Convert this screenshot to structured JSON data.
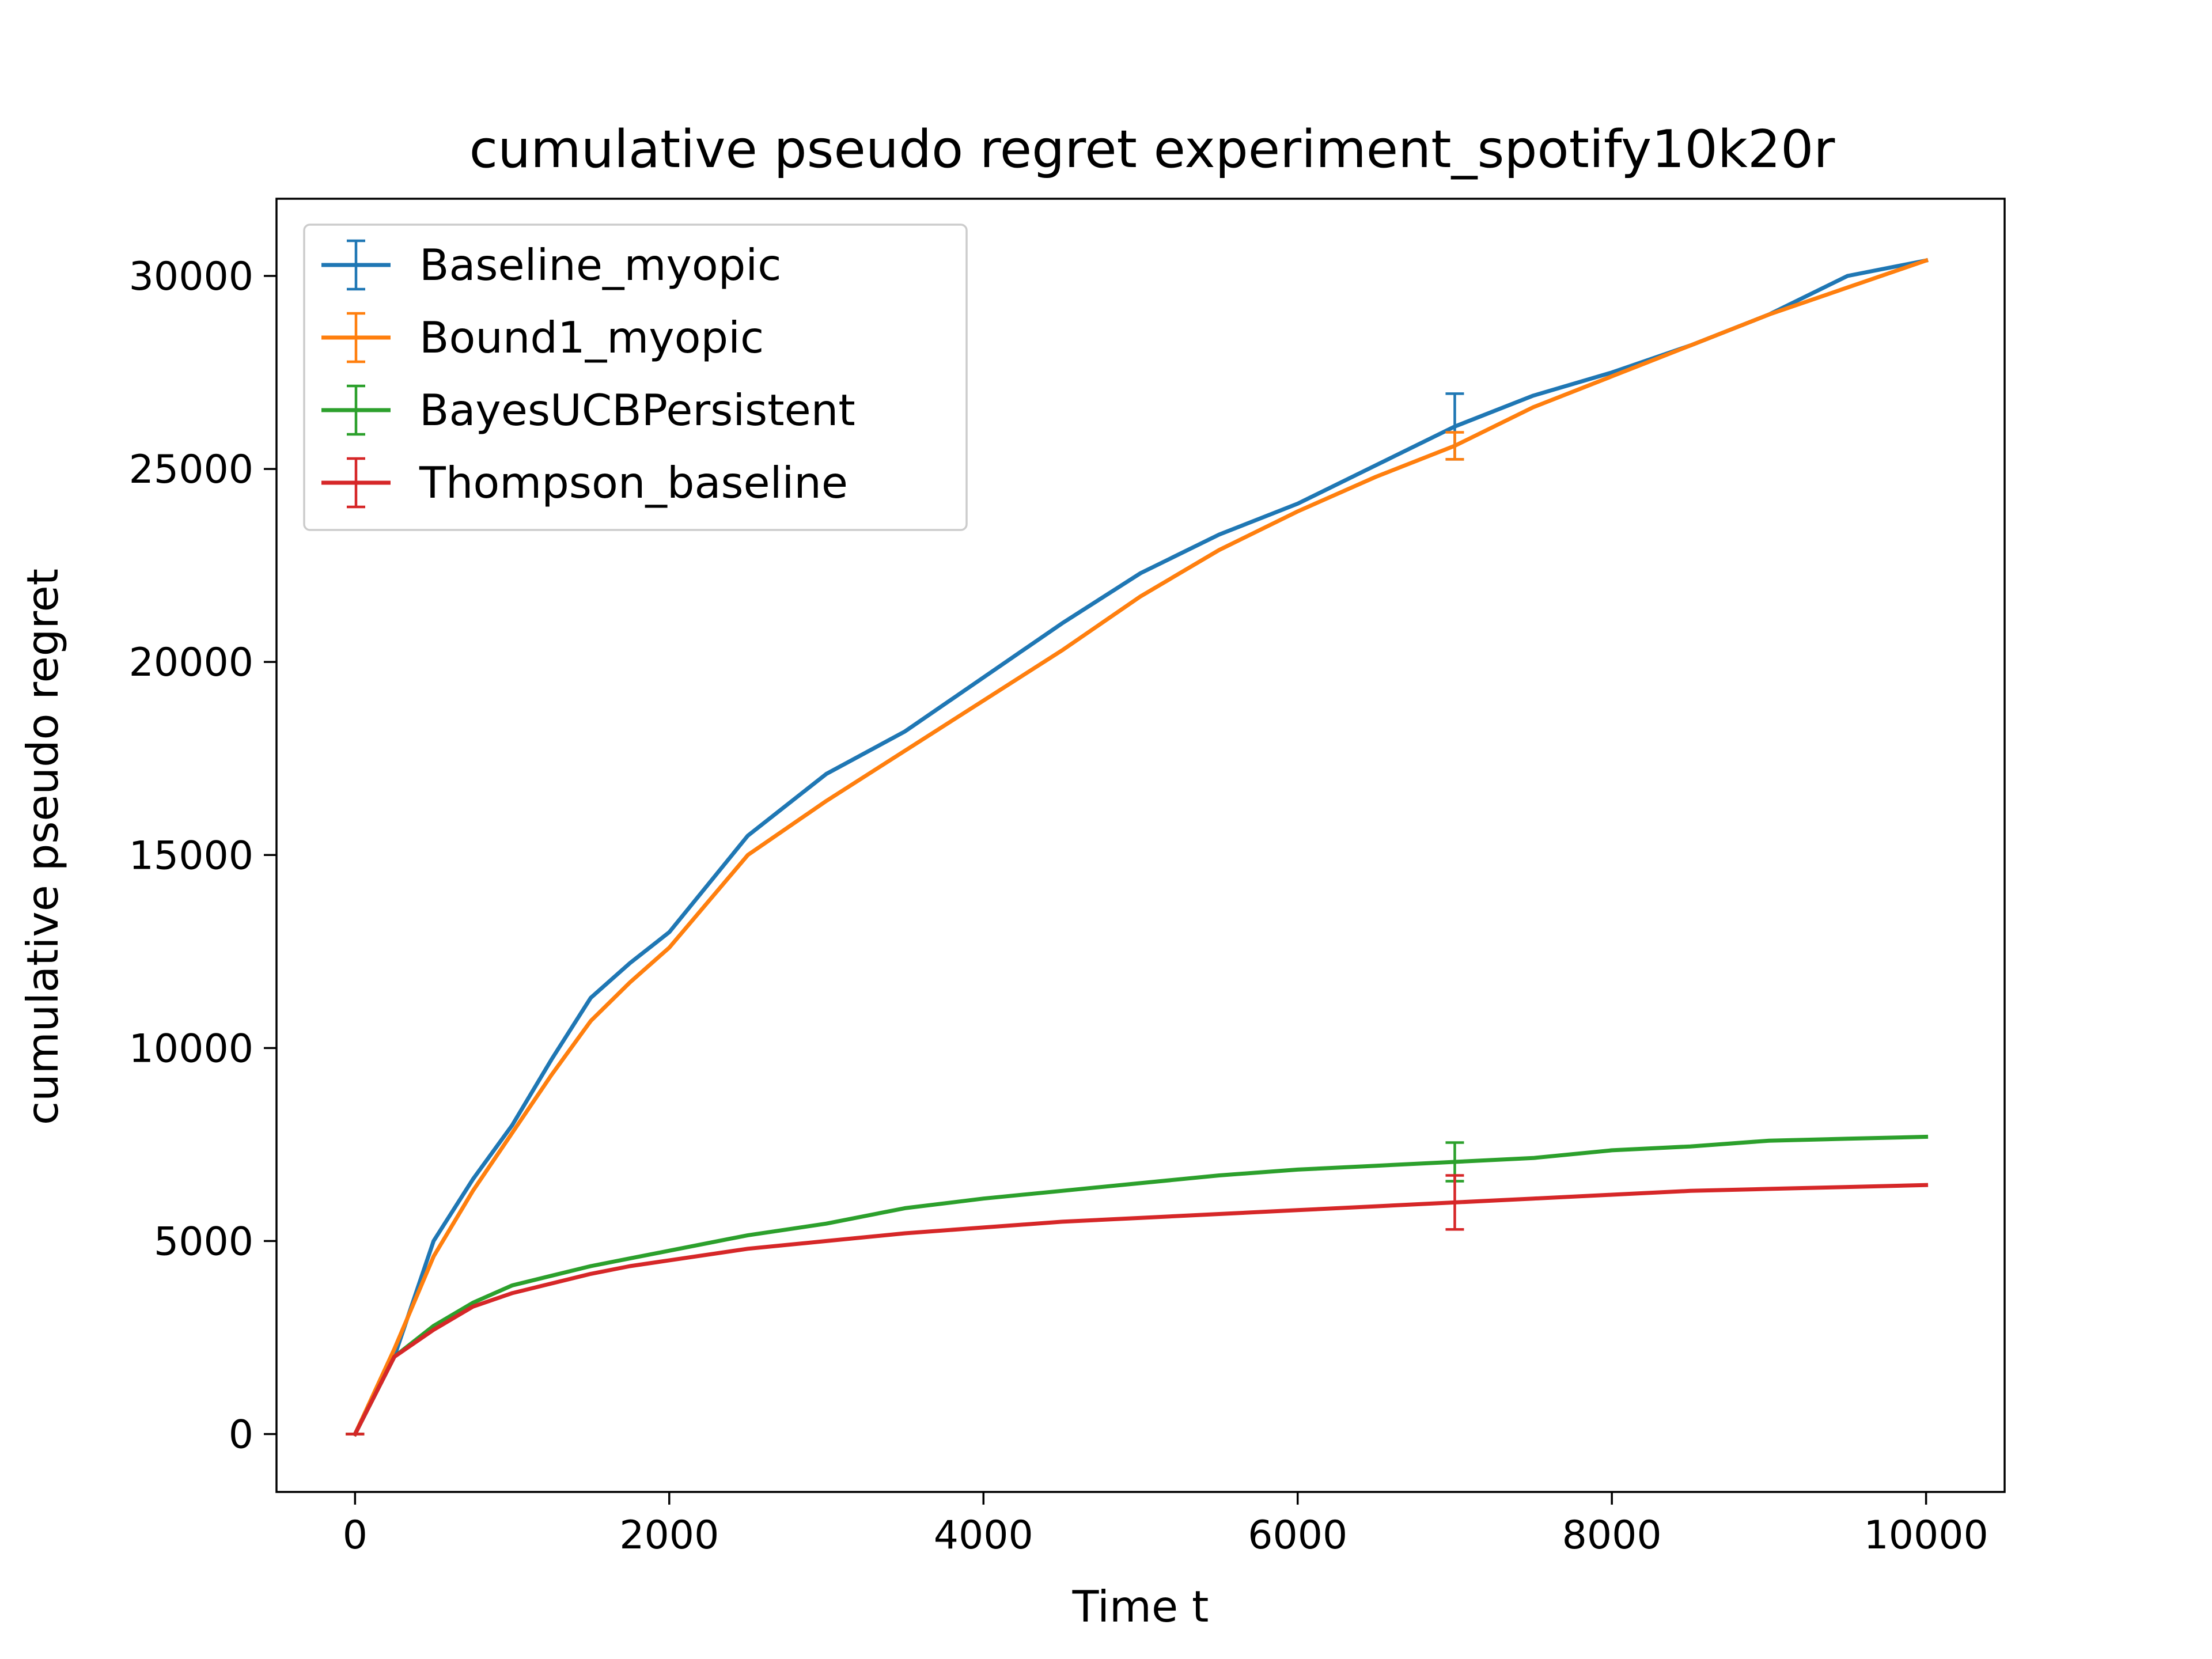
{
  "chart_data": {
    "type": "line",
    "title": "cumulative pseudo regret experiment_spotify10k20r",
    "xlabel": "Time t",
    "ylabel": "cumulative pseudo regret",
    "xlim": [
      -500,
      10500
    ],
    "ylim": [
      -1500,
      32000
    ],
    "xticks": [
      0,
      2000,
      4000,
      6000,
      8000,
      10000
    ],
    "xtick_labels": [
      "0",
      "2000",
      "4000",
      "6000",
      "8000",
      "10000"
    ],
    "yticks": [
      0,
      5000,
      10000,
      15000,
      20000,
      25000,
      30000
    ],
    "ytick_labels": [
      "0",
      "5000",
      "10000",
      "15000",
      "20000",
      "25000",
      "30000"
    ],
    "grid": false,
    "legend_position": "upper-left",
    "x": [
      0,
      250,
      500,
      750,
      1000,
      1250,
      1500,
      1750,
      2000,
      2500,
      3000,
      3500,
      4000,
      4500,
      5000,
      5500,
      6000,
      6500,
      7000,
      7500,
      8000,
      8500,
      9000,
      9500,
      10000
    ],
    "series": [
      {
        "name": "Baseline_myopic",
        "color": "#1f77b4",
        "values": [
          0,
          2000,
          5000,
          6600,
          8000,
          9700,
          11300,
          12200,
          13000,
          15500,
          17100,
          18200,
          19600,
          21000,
          22300,
          23300,
          24100,
          25100,
          26100,
          26900,
          27500,
          28200,
          29000,
          30000,
          30400
        ],
        "errorbar": {
          "x": 7000,
          "y": 26100,
          "err": 850
        }
      },
      {
        "name": "Bound1_myopic",
        "color": "#ff7f0e",
        "values": [
          0,
          2200,
          4600,
          6300,
          7800,
          9300,
          10700,
          11700,
          12600,
          15000,
          16400,
          17700,
          19000,
          20300,
          21700,
          22900,
          23900,
          24800,
          25600,
          26600,
          27400,
          28200,
          29000,
          29700,
          30400
        ],
        "errorbar": {
          "x": 7000,
          "y": 25600,
          "err": 350
        }
      },
      {
        "name": "BayesUCBPersistent",
        "color": "#2ca02c",
        "values": [
          0,
          2000,
          2800,
          3400,
          3850,
          4100,
          4350,
          4550,
          4750,
          5150,
          5450,
          5850,
          6100,
          6300,
          6500,
          6700,
          6850,
          6950,
          7050,
          7150,
          7350,
          7450,
          7600,
          7650,
          7700
        ],
        "errorbar": {
          "x": 7000,
          "y": 7050,
          "err": 500
        }
      },
      {
        "name": "Thompson_baseline",
        "color": "#d62728",
        "values": [
          0,
          2000,
          2700,
          3300,
          3650,
          3900,
          4150,
          4350,
          4500,
          4800,
          5000,
          5200,
          5350,
          5500,
          5600,
          5700,
          5800,
          5900,
          6000,
          6100,
          6200,
          6300,
          6350,
          6400,
          6450
        ],
        "errorbar": {
          "x": 7000,
          "y": 6000,
          "err": 700
        }
      }
    ]
  }
}
